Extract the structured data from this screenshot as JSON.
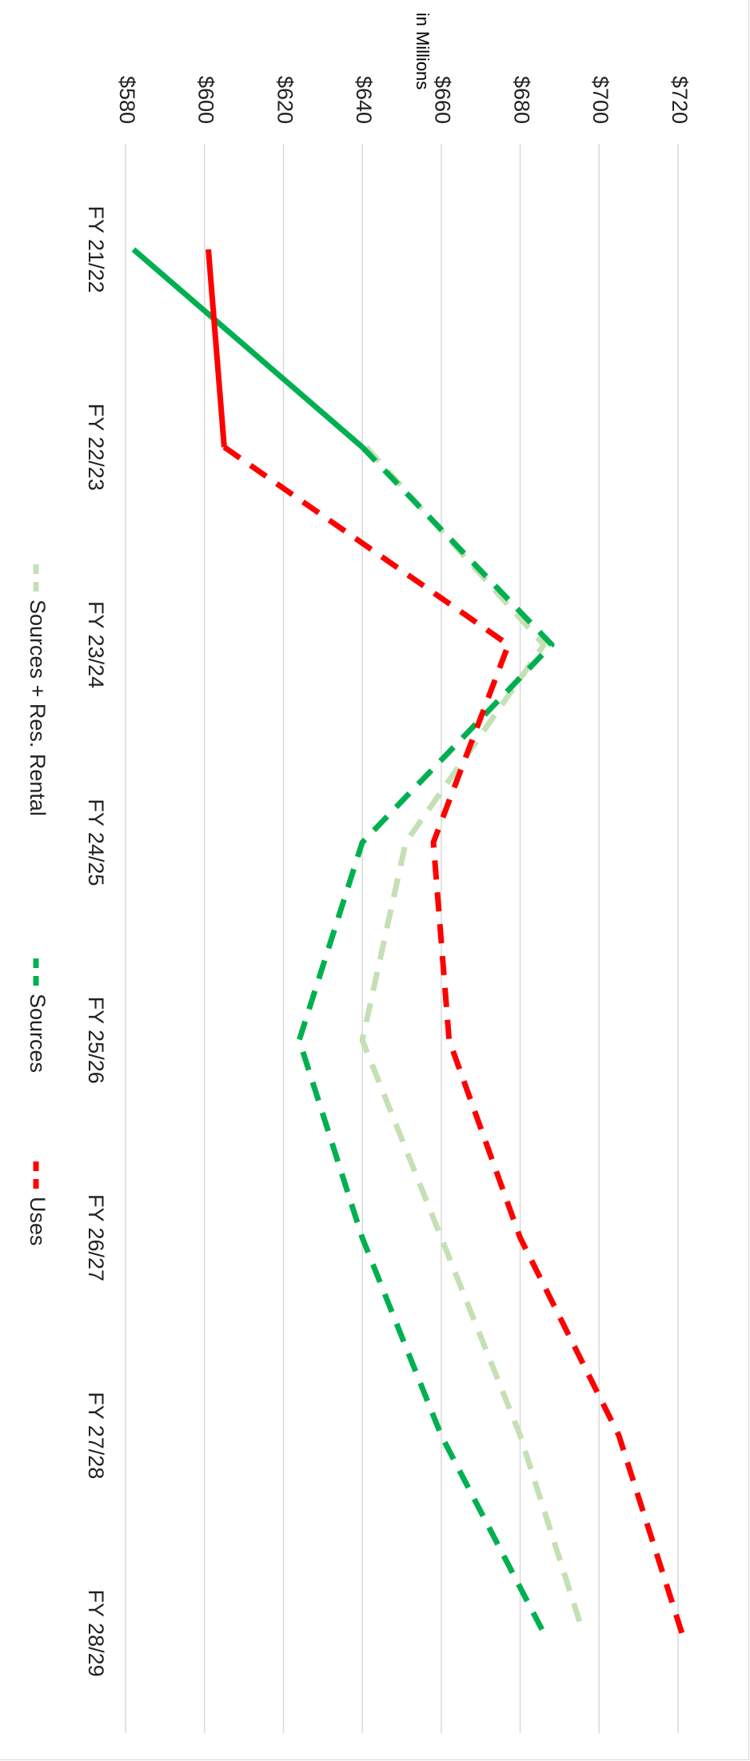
{
  "chart_data": {
    "type": "line",
    "unit_label": "in Millions",
    "categories": [
      "FY 21/22",
      "FY 22/23",
      "FY 23/24",
      "FY 24/25",
      "FY 25/26",
      "FY 26/27",
      "FY 27/28",
      "FY 28/29"
    ],
    "y_ticks": [
      "$580",
      "$600",
      "$620",
      "$640",
      "$660",
      "$680",
      "$700",
      "$720"
    ],
    "ylim": [
      577,
      727
    ],
    "grid": true,
    "legend_position": "bottom",
    "series": [
      {
        "name": "Sources + Res. Rental",
        "color": "#c5e0b4",
        "style": "dashed",
        "values": [
          null,
          641,
          686,
          651,
          640,
          660,
          680,
          696
        ]
      },
      {
        "name": "Sources",
        "color": "#00b050",
        "style": "solid-then-dashed",
        "solid_until_index": 1,
        "values": [
          582,
          640,
          688,
          640,
          624,
          640,
          660,
          686
        ]
      },
      {
        "name": "Uses",
        "color": "#ff0000",
        "style": "solid-then-dashed",
        "solid_until_index": 1,
        "values": [
          601,
          605,
          677,
          658,
          662,
          680,
          705,
          721
        ]
      }
    ]
  }
}
